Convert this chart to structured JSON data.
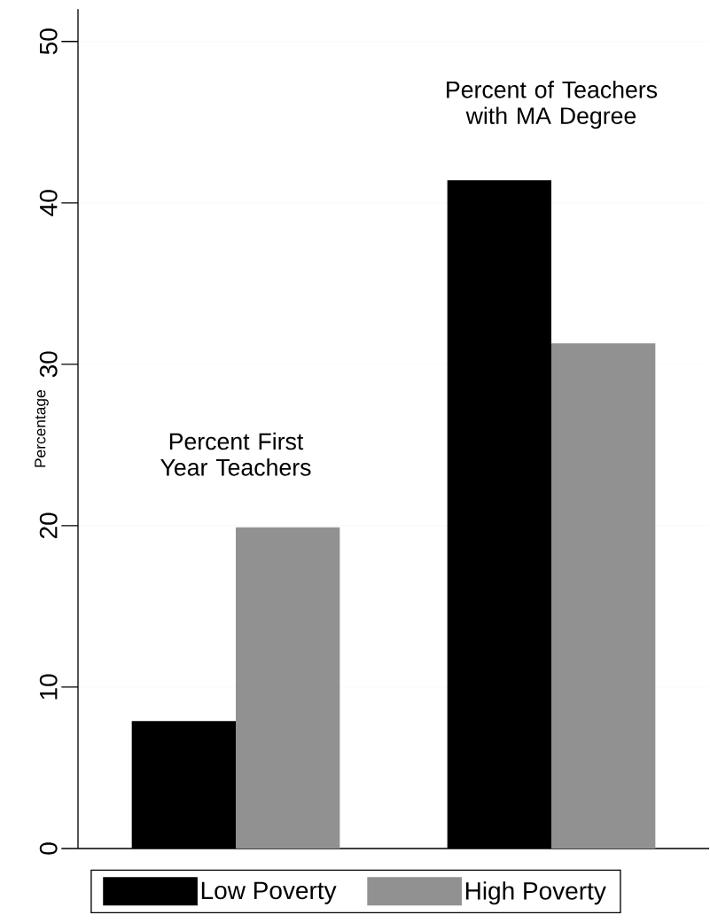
{
  "chart_data": {
    "type": "bar",
    "ylabel": "Percentage",
    "categories": [
      "Percent First Year Teachers",
      "Percent of Teachers with MA Degree"
    ],
    "series": [
      {
        "name": "Low Poverty",
        "color": "#000000",
        "values": [
          7.9,
          41.4
        ]
      },
      {
        "name": "High Poverty",
        "color": "#919191",
        "values": [
          19.9,
          31.3
        ]
      }
    ],
    "ylim": [
      0,
      52
    ],
    "yticks": [
      0,
      10,
      20,
      30,
      40,
      50
    ],
    "grid": "y",
    "legend": "bottom"
  }
}
